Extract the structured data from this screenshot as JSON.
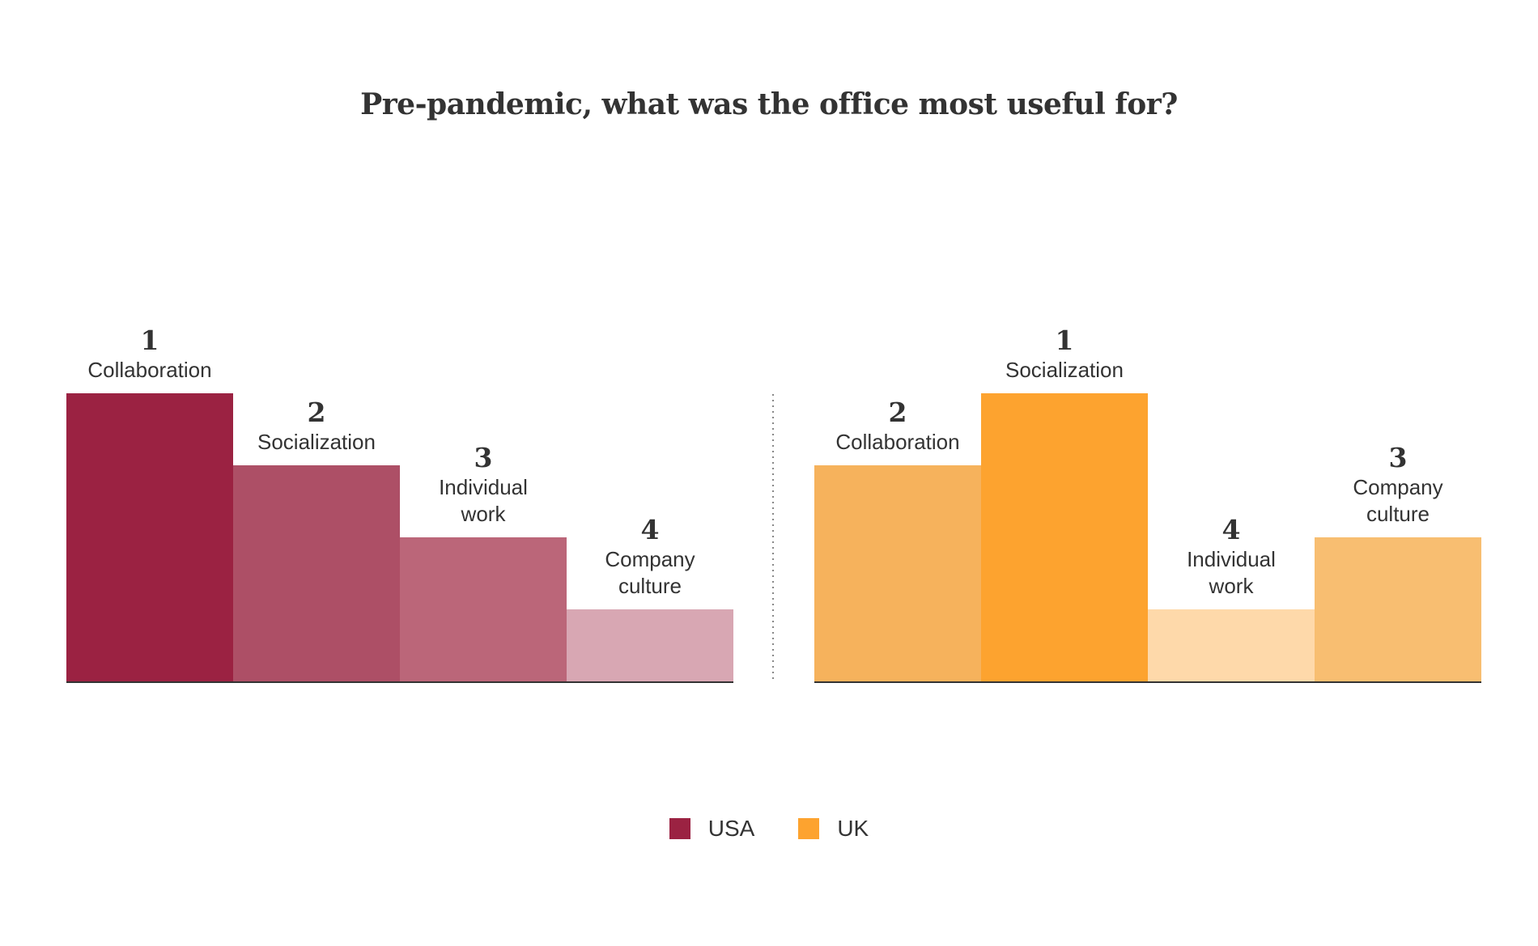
{
  "chart_data": {
    "type": "bar",
    "title": "Pre-pandemic, what was the office most useful for?",
    "xlabel": "",
    "ylabel": "",
    "panels": [
      {
        "group": "USA",
        "bars": [
          {
            "category": "Collaboration",
            "lines": [
              "Collaboration"
            ],
            "rank": "1",
            "height_level": 4,
            "color": "#9b2242"
          },
          {
            "category": "Socialization",
            "lines": [
              "Socialization"
            ],
            "rank": "2",
            "height_level": 3,
            "color": "#ad4f66"
          },
          {
            "category": "Individual work",
            "lines": [
              "Individual",
              "work"
            ],
            "rank": "3",
            "height_level": 2,
            "color": "#bb6679"
          },
          {
            "category": "Company culture",
            "lines": [
              "Company",
              "culture"
            ],
            "rank": "4",
            "height_level": 1,
            "color": "#d8a7b3"
          }
        ]
      },
      {
        "group": "UK",
        "bars": [
          {
            "category": "Collaboration",
            "lines": [
              "Collaboration"
            ],
            "rank": "2",
            "height_level": 3,
            "color": "#f6b25c"
          },
          {
            "category": "Socialization",
            "lines": [
              "Socialization"
            ],
            "rank": "1",
            "height_level": 4,
            "color": "#fda32f"
          },
          {
            "category": "Individual work",
            "lines": [
              "Individual",
              "work"
            ],
            "rank": "4",
            "height_level": 1,
            "color": "#fed9aa"
          },
          {
            "category": "Company culture",
            "lines": [
              "Company",
              "culture"
            ],
            "rank": "3",
            "height_level": 2,
            "color": "#f8be71"
          }
        ]
      }
    ],
    "legend": [
      {
        "name": "USA",
        "color": "#9b2242"
      },
      {
        "name": "UK",
        "color": "#fda32f"
      }
    ],
    "legend_position": "bottom-center",
    "grid": false
  }
}
